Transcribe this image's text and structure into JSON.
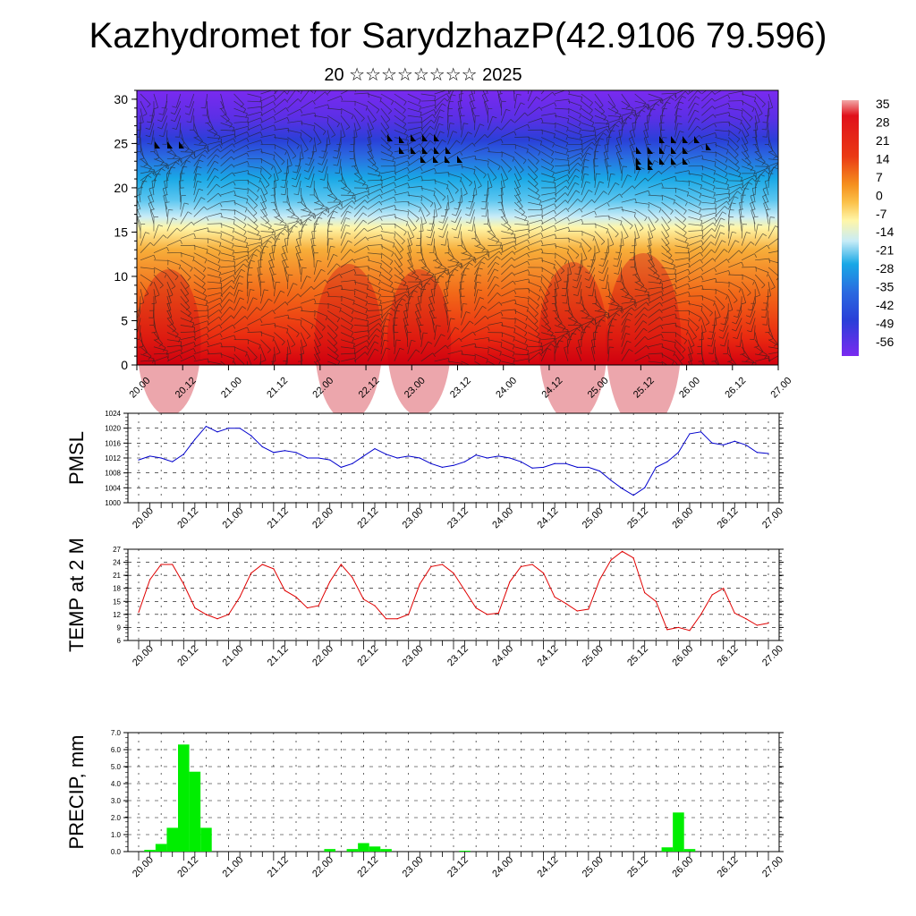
{
  "header": {
    "title": "Kazhydromet for SarydzhazP(42.9106 79.596)",
    "subtitle": "20 ☆☆☆☆☆☆☆☆ 2025"
  },
  "chart_data": [
    {
      "type": "heatmap",
      "title": "",
      "xlabel": "",
      "ylabel": "",
      "x_tick_labels": [
        "20.00",
        "20.12",
        "21.00",
        "21.12",
        "22.00",
        "22.12",
        "23.00",
        "23.12",
        "24.00",
        "24.12",
        "25.00",
        "25.12",
        "26.00",
        "26.12",
        "27.00"
      ],
      "y_tick_labels": [
        "0",
        "5",
        "10",
        "15",
        "20",
        "25",
        "30"
      ],
      "ylim": [
        0,
        31
      ],
      "colorbar_labels": [
        "35",
        "28",
        "21",
        "14",
        "7",
        "0",
        "-7",
        "-14",
        "-21",
        "-28",
        "-35",
        "-42",
        "-49",
        "-56"
      ],
      "colorbar_range": [
        -60,
        38
      ],
      "grid": false,
      "overlay": "wind barbs",
      "colors": {
        "hot": "#d4000f",
        "warm": "#f59a20",
        "neutral": "#fff6a8",
        "cool": "#19a8e6",
        "cold": "#2a3fd8",
        "coldest": "#7a2af0"
      }
    },
    {
      "type": "line",
      "ylabel": "PMSL",
      "ylim": [
        1000,
        1024
      ],
      "y_tick_labels": [
        "1000",
        "1004",
        "1008",
        "1012",
        "1016",
        "1020",
        "1024"
      ],
      "x_tick_labels": [
        "20.00",
        "20.12",
        "21.00",
        "21.12",
        "22.00",
        "22.12",
        "23.00",
        "23.12",
        "24.00",
        "24.12",
        "25.00",
        "25.12",
        "26.00",
        "26.12",
        "27.00"
      ],
      "grid": true,
      "color": "#0000cc",
      "x": [
        0,
        3,
        6,
        9,
        12,
        15,
        18,
        21,
        24,
        27,
        30,
        33,
        36,
        39,
        42,
        45,
        48,
        51,
        54,
        57,
        60,
        63,
        66,
        69,
        72,
        75,
        78,
        81,
        84,
        87,
        90,
        93,
        96,
        99,
        102,
        105,
        108,
        111,
        114,
        117,
        120,
        123,
        126,
        129,
        132,
        135,
        138,
        141,
        144,
        147,
        150,
        153,
        156,
        159,
        162,
        165,
        168
      ],
      "values": [
        1011.5,
        1012.5,
        1012,
        1011,
        1013,
        1017,
        1020.5,
        1019,
        1020,
        1020,
        1018,
        1015,
        1013.5,
        1014,
        1013.5,
        1012,
        1012,
        1011.5,
        1009.5,
        1010.5,
        1012.5,
        1014.5,
        1013,
        1012,
        1012.5,
        1012,
        1010.5,
        1009.5,
        1010,
        1011,
        1012.8,
        1012,
        1012.5,
        1012,
        1011,
        1009.3,
        1009.5,
        1010.5,
        1010.5,
        1009.5,
        1009.5,
        1008.5,
        1006,
        1003.8,
        1002,
        1004,
        1009.5,
        1011,
        1013.5,
        1018.5,
        1019,
        1016,
        1015.5,
        1016.5,
        1015.5,
        1013.5,
        1013.2
      ]
    },
    {
      "type": "line",
      "ylabel": "TEMP at 2 M",
      "ylim": [
        6,
        27
      ],
      "y_tick_labels": [
        "6",
        "9",
        "12",
        "15",
        "18",
        "21",
        "24",
        "27"
      ],
      "x_tick_labels": [
        "20.00",
        "20.12",
        "21.00",
        "21.12",
        "22.00",
        "22.12",
        "23.00",
        "23.12",
        "24.00",
        "24.12",
        "25.00",
        "25.12",
        "26.00",
        "26.12",
        "27.00"
      ],
      "grid": true,
      "color": "#e00000",
      "x": [
        0,
        3,
        6,
        9,
        12,
        15,
        18,
        21,
        24,
        27,
        30,
        33,
        36,
        39,
        42,
        45,
        48,
        51,
        54,
        57,
        60,
        63,
        66,
        69,
        72,
        75,
        78,
        81,
        84,
        87,
        90,
        93,
        96,
        99,
        102,
        105,
        108,
        111,
        114,
        117,
        120,
        123,
        126,
        129,
        132,
        135,
        138,
        141,
        144,
        147,
        150,
        153,
        156,
        159,
        162,
        165,
        168
      ],
      "values": [
        12.5,
        20,
        23.5,
        23.5,
        19,
        13.5,
        12,
        11,
        12,
        16,
        21.5,
        23.5,
        22.5,
        17.5,
        16,
        13.5,
        14,
        19.5,
        23.5,
        20.5,
        15.5,
        14,
        11,
        11,
        12,
        19,
        23,
        23.5,
        21.5,
        17.5,
        13.5,
        12,
        12.3,
        19.5,
        23,
        23.5,
        21.5,
        16,
        14.5,
        12.8,
        13.2,
        20,
        24.5,
        26.5,
        25,
        17,
        15,
        8.5,
        9,
        8.3,
        12,
        16.5,
        18,
        12.3,
        11,
        9.5,
        10
      ]
    },
    {
      "type": "bar",
      "ylabel": "PRECIP, mm",
      "ylim": [
        0,
        7.0
      ],
      "y_tick_labels": [
        "0.0",
        "1.0",
        "2.0",
        "3.0",
        "4.0",
        "5.0",
        "6.0",
        "7.0"
      ],
      "x_tick_labels": [
        "20.00",
        "20.12",
        "21.00",
        "21.12",
        "22.00",
        "22.12",
        "23.00",
        "23.12",
        "24.00",
        "24.12",
        "25.00",
        "25.12",
        "26.00",
        "26.12",
        "27.00"
      ],
      "grid": true,
      "color": "#00ee00",
      "bar_width_hours": 3,
      "x": [
        3,
        6,
        9,
        12,
        15,
        18,
        51,
        57,
        60,
        63,
        66,
        87,
        141,
        144,
        147
      ],
      "values": [
        0.1,
        0.45,
        1.4,
        6.3,
        4.7,
        1.4,
        0.15,
        0.15,
        0.5,
        0.3,
        0.15,
        0.05,
        0.25,
        2.3,
        0.15
      ]
    }
  ]
}
